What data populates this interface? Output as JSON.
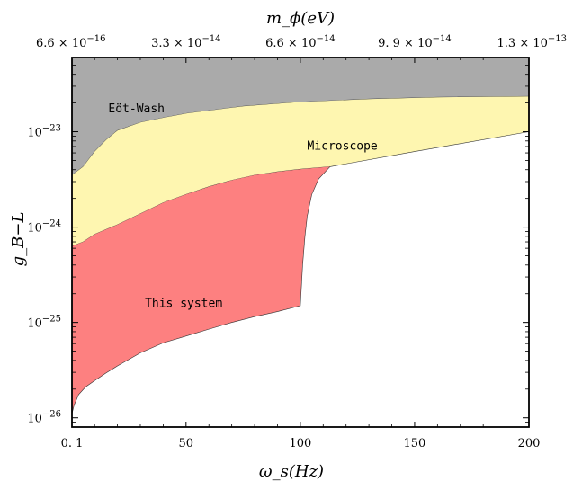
{
  "chart_data": {
    "type": "area",
    "xlabel": "ω_s(Hz)",
    "ylabel": "g_B−L",
    "x2label": "m_ϕ(eV)",
    "xlim": [
      0.1,
      200
    ],
    "ylim": [
      8e-27,
      6e-23
    ],
    "yscale": "log",
    "grid": false,
    "x_ticks": [
      {
        "value": 0.1,
        "label": "0. 1"
      },
      {
        "value": 50,
        "label": "50"
      },
      {
        "value": 100,
        "label": "100"
      },
      {
        "value": 150,
        "label": "150"
      },
      {
        "value": 200,
        "label": "200"
      }
    ],
    "y_ticks": [
      {
        "value": 1e-26,
        "mant": "10",
        "exp": "−26"
      },
      {
        "value": 1e-25,
        "mant": "10",
        "exp": "−25"
      },
      {
        "value": 1e-24,
        "mant": "10",
        "exp": "−24"
      },
      {
        "value": 1e-23,
        "mant": "10",
        "exp": "−23"
      }
    ],
    "x2_ticks": [
      {
        "value": 0.1,
        "mant": "6.6 × 10",
        "exp": "−16"
      },
      {
        "value": 50,
        "mant": "3.3 × 10",
        "exp": "−14"
      },
      {
        "value": 100,
        "mant": "6.6 × 10",
        "exp": "−14"
      },
      {
        "value": 150,
        "mant": "9. 9 × 10",
        "exp": "−14"
      },
      {
        "value": 200,
        "mant": "1.3 × 10",
        "exp": "−13"
      }
    ],
    "series": [
      {
        "name": "Eöt-Wash",
        "color": "#aaaaaa",
        "label_at": [
          16,
          1.6e-23
        ],
        "boundary": [
          [
            0.1,
            3.5e-24
          ],
          [
            5,
            4.3e-24
          ],
          [
            10,
            6.2e-24
          ],
          [
            15,
            8.2e-24
          ],
          [
            20,
            1.03e-23
          ],
          [
            30,
            1.25e-23
          ],
          [
            40,
            1.4e-23
          ],
          [
            50,
            1.55e-23
          ],
          [
            75,
            1.85e-23
          ],
          [
            100,
            2.05e-23
          ],
          [
            130,
            2.2e-23
          ],
          [
            160,
            2.3e-23
          ],
          [
            200,
            2.35e-23
          ]
        ]
      },
      {
        "name": "Microscope",
        "color": "#fef6b0",
        "label_at": [
          103,
          6.5e-24
        ],
        "boundary": [
          [
            0.1,
            6.3e-25
          ],
          [
            5,
            7e-25
          ],
          [
            10,
            8.4e-25
          ],
          [
            20,
            1.06e-24
          ],
          [
            30,
            1.38e-24
          ],
          [
            40,
            1.8e-24
          ],
          [
            50,
            2.2e-24
          ],
          [
            60,
            2.65e-24
          ],
          [
            70,
            3.1e-24
          ],
          [
            80,
            3.5e-24
          ],
          [
            90,
            3.8e-24
          ],
          [
            100,
            4.05e-24
          ],
          [
            113,
            4.3e-24
          ],
          [
            150,
            6.2e-24
          ],
          [
            200,
            1e-23
          ]
        ]
      },
      {
        "name": "This system",
        "color": "#fd8080",
        "label_at": [
          32,
          1.45e-25
        ],
        "boundary": [
          [
            0.1,
            1.1e-26
          ],
          [
            1,
            1.35e-26
          ],
          [
            3,
            1.75e-26
          ],
          [
            6,
            2.1e-26
          ],
          [
            10,
            2.45e-26
          ],
          [
            15,
            2.95e-26
          ],
          [
            20,
            3.5e-26
          ],
          [
            30,
            4.8e-26
          ],
          [
            40,
            6.1e-26
          ],
          [
            50,
            7.2e-26
          ],
          [
            60,
            8.5e-26
          ],
          [
            70,
            1e-25
          ],
          [
            80,
            1.15e-25
          ],
          [
            90,
            1.3e-25
          ],
          [
            100,
            1.5e-25
          ],
          [
            101,
            4e-25
          ],
          [
            102,
            8e-25
          ],
          [
            103,
            1.3e-24
          ],
          [
            105,
            2.2e-24
          ],
          [
            108,
            3.2e-24
          ],
          [
            113,
            4.3e-24
          ]
        ]
      }
    ]
  }
}
